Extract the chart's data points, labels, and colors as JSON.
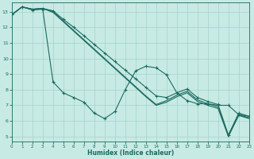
{
  "bg_color": "#c8eae4",
  "grid_color": "#a0d4cc",
  "line_color": "#1a6b60",
  "xlabel": "Humidex (Indice chaleur)",
  "xlim": [
    0,
    23
  ],
  "ylim": [
    4.7,
    13.6
  ],
  "yticks": [
    5,
    6,
    7,
    8,
    9,
    10,
    11,
    12,
    13
  ],
  "xticks": [
    0,
    1,
    2,
    3,
    4,
    5,
    6,
    7,
    8,
    9,
    10,
    11,
    12,
    13,
    14,
    15,
    16,
    17,
    18,
    19,
    20,
    21,
    22,
    23
  ],
  "wavy_x": [
    0,
    1,
    2,
    3,
    4,
    5,
    6,
    7,
    8,
    9,
    10,
    11,
    12,
    13,
    14,
    15,
    16,
    17,
    18,
    19,
    20,
    21,
    22,
    23
  ],
  "wavy_y": [
    12.8,
    13.3,
    13.1,
    13.15,
    8.5,
    7.8,
    7.5,
    7.2,
    6.5,
    6.15,
    6.6,
    8.0,
    9.2,
    9.5,
    9.4,
    8.95,
    7.8,
    7.3,
    7.1,
    7.1,
    7.0,
    7.0,
    6.4,
    6.3
  ],
  "diag1_x": [
    0,
    1,
    2,
    3,
    4,
    5,
    6,
    7,
    8,
    9,
    10,
    11,
    12,
    13,
    14,
    15,
    16,
    17,
    18,
    19,
    20,
    21,
    22,
    23
  ],
  "diag1_y": [
    12.8,
    13.3,
    13.15,
    13.2,
    13.05,
    12.5,
    12.0,
    11.45,
    10.9,
    10.35,
    9.8,
    9.25,
    8.7,
    8.15,
    7.6,
    7.5,
    7.8,
    8.05,
    7.5,
    7.25,
    7.05,
    5.1,
    6.5,
    6.3
  ],
  "diag2_x": [
    0,
    1,
    2,
    3,
    4,
    5,
    6,
    7,
    8,
    9,
    10,
    11,
    12,
    13,
    14,
    15,
    16,
    17,
    18,
    19,
    20,
    21,
    22,
    23
  ],
  "diag2_y": [
    12.8,
    13.3,
    13.15,
    13.2,
    13.0,
    12.4,
    11.8,
    11.2,
    10.6,
    10.0,
    9.4,
    8.8,
    8.2,
    7.6,
    7.05,
    7.3,
    7.65,
    7.9,
    7.35,
    7.1,
    6.9,
    5.05,
    6.4,
    6.2
  ],
  "diag3_x": [
    0,
    1,
    2,
    3,
    4,
    5,
    6,
    7,
    8,
    9,
    10,
    11,
    12,
    13,
    14,
    15,
    16,
    17,
    18,
    19,
    20,
    21,
    22,
    23
  ],
  "diag3_y": [
    12.8,
    13.3,
    13.15,
    13.2,
    12.95,
    12.35,
    11.75,
    11.15,
    10.55,
    9.95,
    9.35,
    8.75,
    8.15,
    7.55,
    7.0,
    7.2,
    7.55,
    7.8,
    7.25,
    7.0,
    6.8,
    5.0,
    6.35,
    6.15
  ]
}
